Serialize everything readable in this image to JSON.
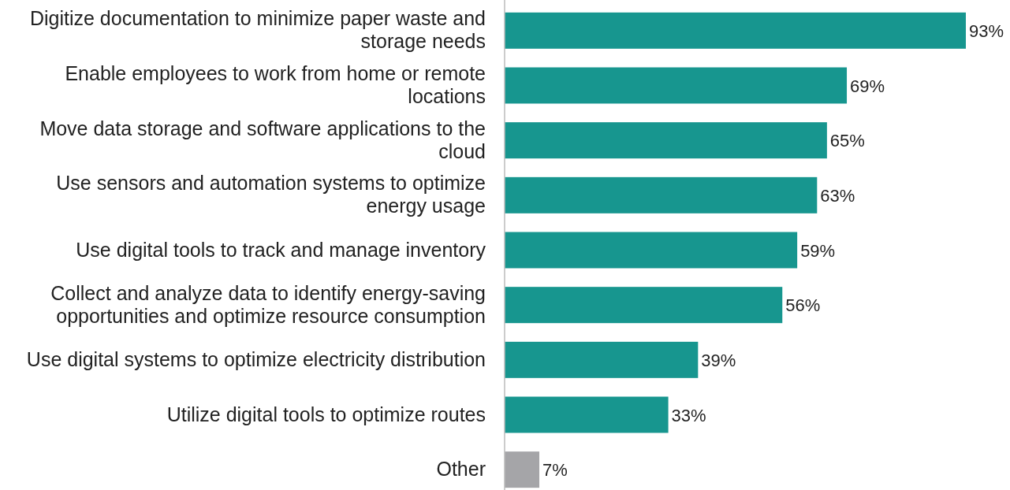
{
  "chart_data": {
    "type": "bar",
    "orientation": "horizontal",
    "categories": [
      "Digitize documentation to minimize paper waste and storage needs",
      "Enable employees to work from home or remote locations",
      "Move data storage and software applications to the cloud",
      "Use sensors and automation systems to optimize energy usage",
      "Use digital tools to track and manage inventory",
      "Collect and analyze data to identify energy-saving opportunities and optimize resource consumption",
      "Use digital systems to optimize electricity distribution",
      "Utilize digital tools to optimize routes",
      "Other"
    ],
    "values": [
      93,
      69,
      65,
      63,
      59,
      56,
      39,
      33,
      7
    ],
    "colors": [
      "#17968f",
      "#17968f",
      "#17968f",
      "#17968f",
      "#17968f",
      "#17968f",
      "#17968f",
      "#17968f",
      "#a5a5a8"
    ],
    "value_labels": [
      "93%",
      "69%",
      "65%",
      "63%",
      "59%",
      "56%",
      "39%",
      "33%",
      "7%"
    ]
  }
}
